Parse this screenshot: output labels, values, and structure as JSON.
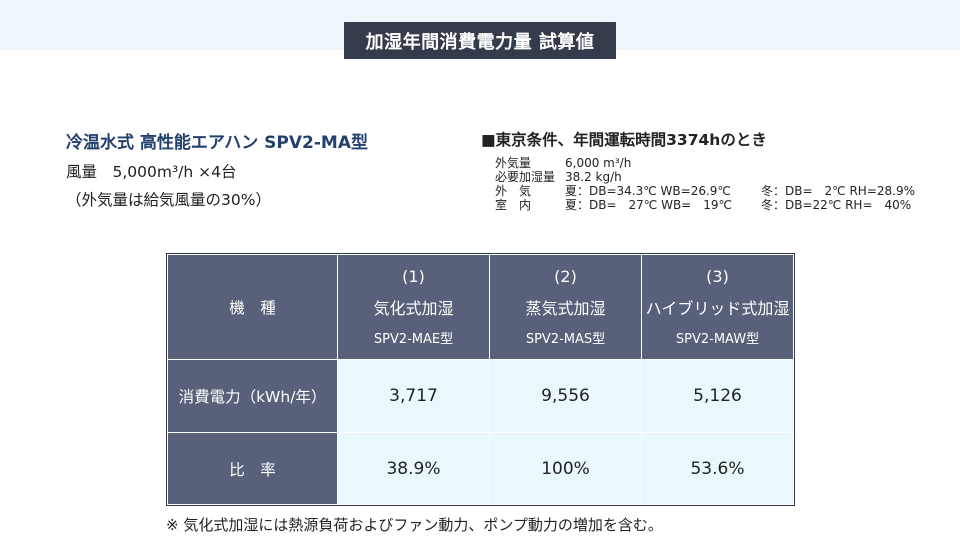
{
  "title": "加湿年間消費電力量 試算値",
  "product": {
    "name": "冷温水式 高性能エアハン SPV2-MA型",
    "airflow": "風量　5,000m³/h ×4台",
    "outdoor_air": "（外気量は給気風量の30%）"
  },
  "conditions": {
    "heading": "■東京条件、年間運転時間3374hのとき",
    "lines": [
      {
        "label": "外気量",
        "v1": "6,000 m³/h",
        "v2": ""
      },
      {
        "label": "必要加湿量",
        "v1": "38.2 kg/h",
        "v2": ""
      },
      {
        "label": "外　気",
        "v1": "夏：DB=34.3℃ WB=26.9℃",
        "v2": "冬：DB=　2℃ RH=28.9%"
      },
      {
        "label": "室　内",
        "v1": "夏：DB=　27℃ WB=　19℃",
        "v2": "冬：DB=22℃ RH=　40%"
      }
    ]
  },
  "table": {
    "header_label": "機　種",
    "columns": [
      {
        "num": "(1)",
        "name": "気化式加湿",
        "model": "SPV2-MAE型"
      },
      {
        "num": "(2)",
        "name": "蒸気式加湿",
        "model": "SPV2-MAS型"
      },
      {
        "num": "(3)",
        "name": "ハイブリッド式加湿",
        "model": "SPV2-MAW型"
      }
    ],
    "rows": [
      {
        "label": "消費電力（kWh/年）",
        "values": [
          "3,717",
          "9,556",
          "5,126"
        ]
      },
      {
        "label": "比　率",
        "values": [
          "38.9%",
          "100%",
          "53.6%"
        ]
      }
    ]
  },
  "footnote": "※ 気化式加湿には熱源負荷およびファン動力、ポンプ動力の増加を含む。",
  "colors": {
    "title_bg": "#343c4c",
    "header_bg": "#58607a",
    "value_bg": "#eaf7fd",
    "product_text": "#24406e"
  }
}
